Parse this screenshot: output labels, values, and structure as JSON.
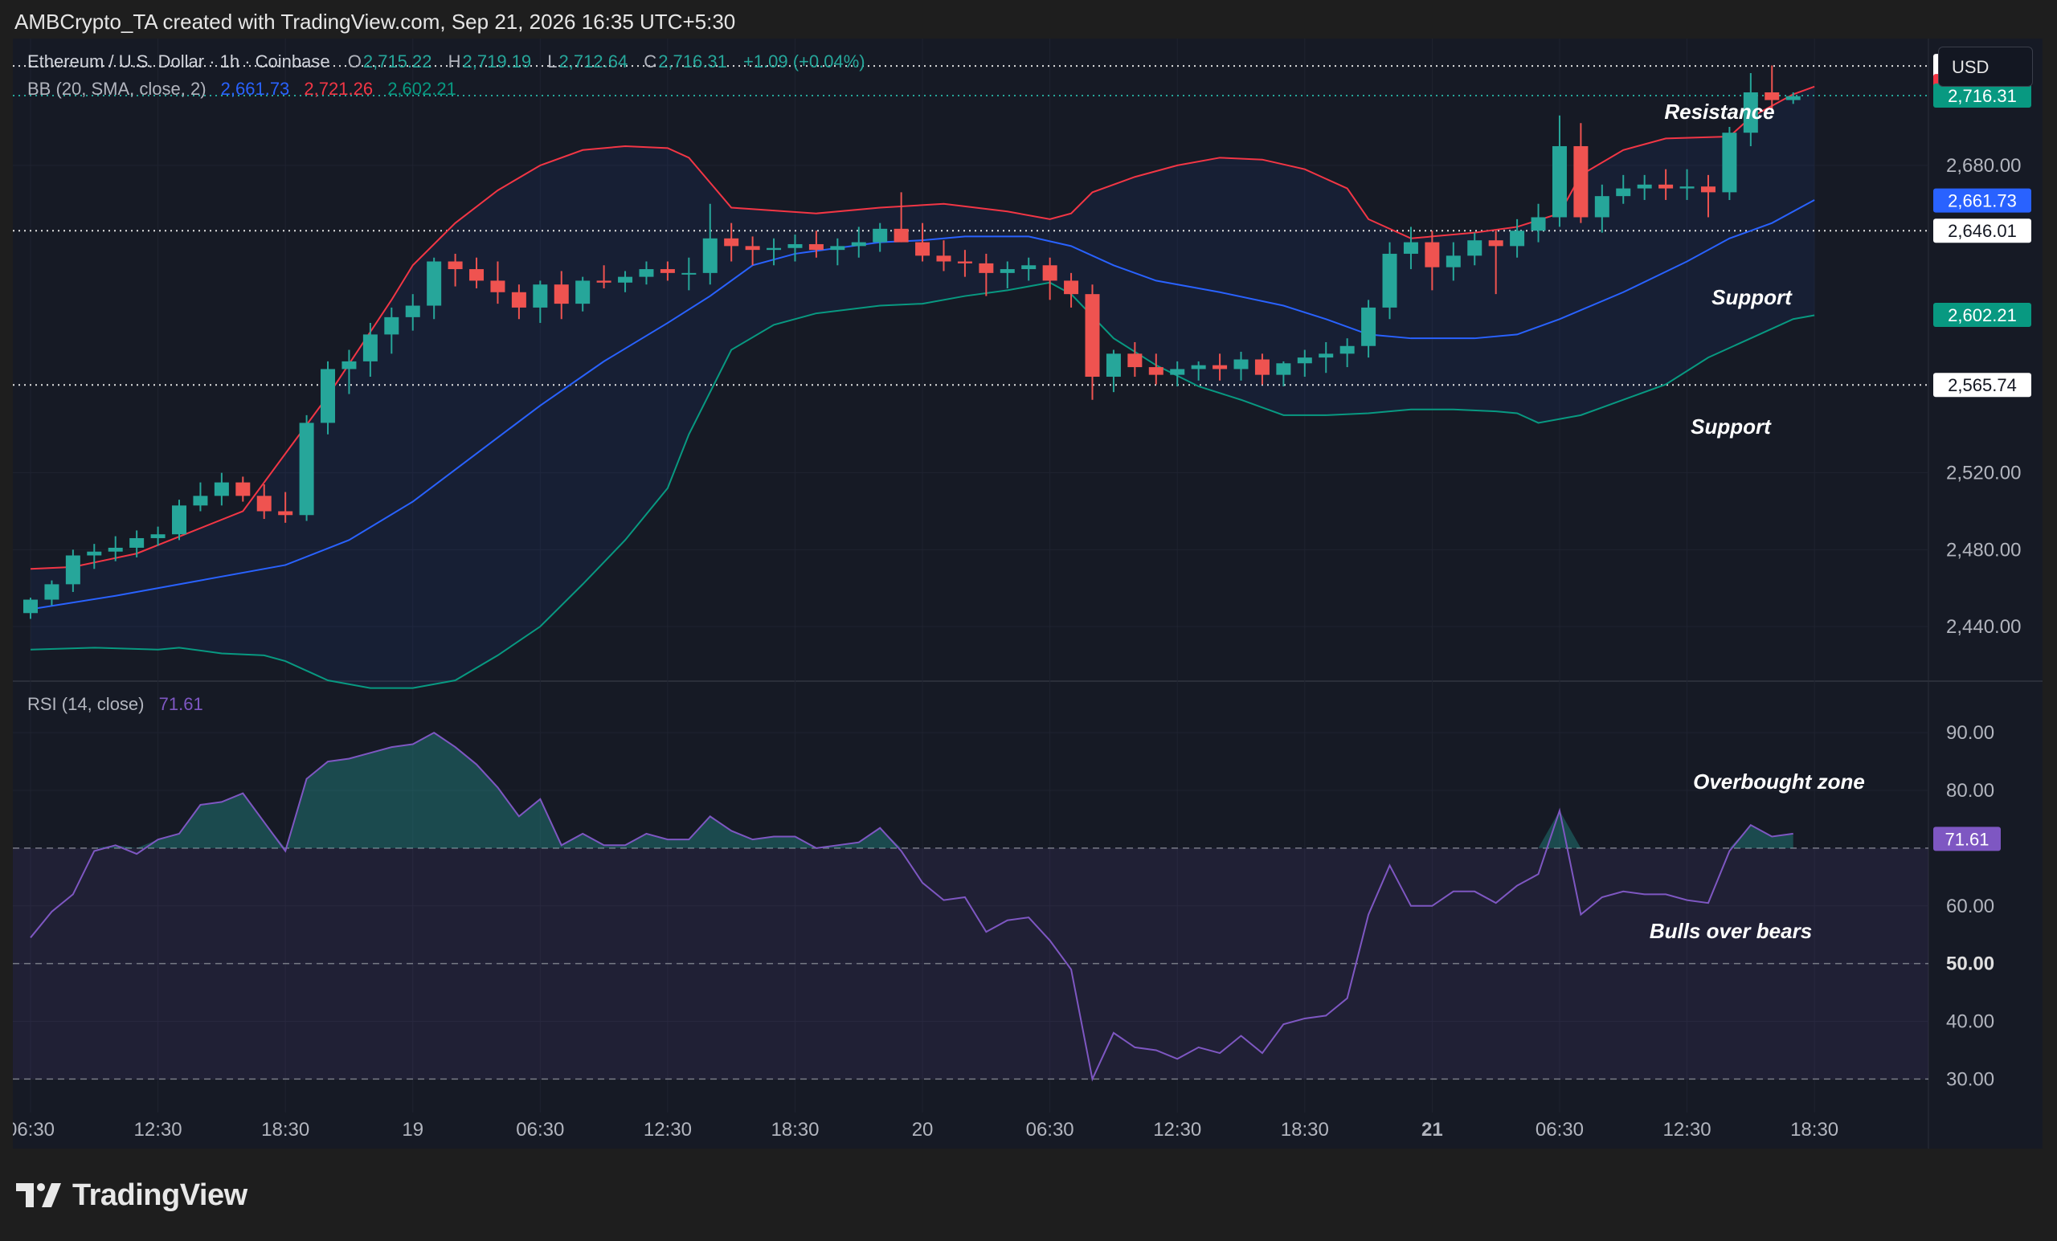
{
  "header": {
    "text": "AMBCrypto_TA created with TradingView.com, Sep 21, 2026 16:35 UTC+5:30"
  },
  "legend": {
    "symbol": "Ethereum / U.S. Dollar · 1h · Coinbase",
    "o_label": "O",
    "o_value": "2,715.22",
    "h_label": "H",
    "h_value": "2,719.19",
    "l_label": "L",
    "l_value": "2,712.64",
    "c_label": "C",
    "c_value": "2,716.31",
    "change": "+1.09 (+0.04%)",
    "bb_label": "BB (20, SMA, close, 2)",
    "bb_basis": "2,661.73",
    "bb_upper": "2,721.26",
    "bb_lower": "2,602.21",
    "rsi_label": "RSI (14, close)",
    "rsi_value": "71.61"
  },
  "currency_button": "USD",
  "brand": "TradingView",
  "colors": {
    "up": "#26a69a",
    "down": "#ef5350",
    "basis": "#2962ff",
    "upper": "#f23645",
    "lower": "#089981",
    "rsi": "#7e57c2",
    "background": "#161a25"
  },
  "annotations": {
    "resistance": "Resistance",
    "support_1": "Support",
    "support_2": "Support",
    "overbought": "Overbought zone",
    "bulls": "Bulls over bears"
  },
  "price_tags": [
    {
      "value": 2731.75,
      "label": "2,731.75",
      "style": "white"
    },
    {
      "value": 2721.26,
      "label": "2,721.26",
      "style": "red"
    },
    {
      "value": 2716.31,
      "label": "2,716.31",
      "style": "green"
    },
    {
      "value": 2661.73,
      "label": "2,661.73",
      "style": "blue"
    },
    {
      "value": 2646.01,
      "label": "2,646.01",
      "style": "white"
    },
    {
      "value": 2602.21,
      "label": "2,602.21",
      "style": "green"
    },
    {
      "value": 2565.74,
      "label": "2,565.74",
      "style": "white"
    }
  ],
  "rsi_tag": {
    "value": 71.61,
    "label": "71.61"
  },
  "chart_data": {
    "type": "candlestick",
    "price_axis": {
      "ylim": [
        2412,
        2746
      ],
      "ticks": [
        "2,440.00",
        "2,480.00",
        "2,520.00",
        "2,680.00"
      ],
      "tick_values": [
        2440,
        2480,
        2520,
        2680
      ]
    },
    "rsi_axis": {
      "ylim": [
        27,
        96
      ],
      "ticks": [
        "30.00",
        "40.00",
        "50.00",
        "60.00",
        "80.00",
        "90.00"
      ],
      "tick_values": [
        30,
        40,
        50,
        60,
        80,
        90
      ],
      "bold_tick": "50.00",
      "dashed_levels": [
        30,
        50,
        70
      ]
    },
    "x_axis": {
      "labels": [
        "06:30",
        "12:30",
        "18:30",
        "19",
        "06:30",
        "12:30",
        "18:30",
        "20",
        "06:30",
        "12:30",
        "18:30",
        "21",
        "06:30",
        "12:30",
        "18:30"
      ],
      "bold": [
        false,
        false,
        false,
        false,
        false,
        false,
        false,
        false,
        false,
        false,
        false,
        true,
        false,
        false,
        false
      ],
      "start_offset_hours": 0
    },
    "hlines": [
      2731.75,
      2646.01,
      2565.74,
      2716.31
    ],
    "candles": [
      [
        2447,
        2455,
        2444,
        2454
      ],
      [
        2454,
        2464,
        2451,
        2462
      ],
      [
        2462,
        2480,
        2458,
        2477
      ],
      [
        2477,
        2483,
        2470,
        2479
      ],
      [
        2479,
        2487,
        2474,
        2481
      ],
      [
        2481,
        2490,
        2476,
        2486
      ],
      [
        2486,
        2492,
        2482,
        2488
      ],
      [
        2488,
        2506,
        2485,
        2503
      ],
      [
        2503,
        2515,
        2500,
        2508
      ],
      [
        2508,
        2520,
        2503,
        2515
      ],
      [
        2515,
        2518,
        2505,
        2508
      ],
      [
        2508,
        2514,
        2496,
        2500
      ],
      [
        2500,
        2510,
        2494,
        2498
      ],
      [
        2498,
        2550,
        2495,
        2546
      ],
      [
        2546,
        2578,
        2540,
        2574
      ],
      [
        2574,
        2584,
        2561,
        2578
      ],
      [
        2578,
        2598,
        2570,
        2592
      ],
      [
        2592,
        2606,
        2582,
        2601
      ],
      [
        2601,
        2613,
        2594,
        2607
      ],
      [
        2607,
        2632,
        2600,
        2630
      ],
      [
        2630,
        2634,
        2617,
        2626
      ],
      [
        2626,
        2632,
        2616,
        2620
      ],
      [
        2620,
        2630,
        2608,
        2614
      ],
      [
        2614,
        2618,
        2600,
        2606
      ],
      [
        2606,
        2620,
        2598,
        2618
      ],
      [
        2618,
        2625,
        2600,
        2608
      ],
      [
        2608,
        2622,
        2604,
        2620
      ],
      [
        2620,
        2628,
        2616,
        2619
      ],
      [
        2619,
        2625,
        2614,
        2622
      ],
      [
        2622,
        2630,
        2618,
        2626
      ],
      [
        2626,
        2630,
        2620,
        2624
      ],
      [
        2624,
        2632,
        2615,
        2624
      ],
      [
        2624,
        2660,
        2618,
        2642
      ],
      [
        2642,
        2650,
        2630,
        2638
      ],
      [
        2638,
        2643,
        2628,
        2636
      ],
      [
        2636,
        2642,
        2628,
        2637
      ],
      [
        2637,
        2644,
        2630,
        2639
      ],
      [
        2639,
        2646,
        2632,
        2636
      ],
      [
        2636,
        2642,
        2628,
        2638
      ],
      [
        2638,
        2648,
        2632,
        2640
      ],
      [
        2640,
        2650,
        2635,
        2647
      ],
      [
        2647,
        2666,
        2640,
        2640
      ],
      [
        2640,
        2650,
        2630,
        2633
      ],
      [
        2633,
        2641,
        2625,
        2630
      ],
      [
        2630,
        2636,
        2622,
        2629
      ],
      [
        2629,
        2634,
        2612,
        2624
      ],
      [
        2624,
        2630,
        2616,
        2626
      ],
      [
        2626,
        2632,
        2620,
        2628
      ],
      [
        2628,
        2632,
        2610,
        2620
      ],
      [
        2620,
        2624,
        2606,
        2613
      ],
      [
        2613,
        2618,
        2558,
        2570
      ],
      [
        2570,
        2584,
        2562,
        2582
      ],
      [
        2582,
        2588,
        2570,
        2575
      ],
      [
        2575,
        2582,
        2566,
        2571
      ],
      [
        2571,
        2578,
        2565,
        2574
      ],
      [
        2574,
        2578,
        2568,
        2576
      ],
      [
        2576,
        2582,
        2568,
        2574
      ],
      [
        2574,
        2583,
        2568,
        2579
      ],
      [
        2579,
        2582,
        2566,
        2571
      ],
      [
        2571,
        2578,
        2565,
        2577
      ],
      [
        2577,
        2584,
        2570,
        2580
      ],
      [
        2580,
        2588,
        2572,
        2582
      ],
      [
        2582,
        2590,
        2575,
        2586
      ],
      [
        2586,
        2610,
        2580,
        2606
      ],
      [
        2606,
        2640,
        2600,
        2634
      ],
      [
        2634,
        2648,
        2626,
        2640
      ],
      [
        2640,
        2646,
        2615,
        2627
      ],
      [
        2627,
        2640,
        2620,
        2633
      ],
      [
        2633,
        2645,
        2628,
        2641
      ],
      [
        2641,
        2646,
        2613,
        2638
      ],
      [
        2638,
        2652,
        2632,
        2646
      ],
      [
        2646,
        2660,
        2640,
        2653
      ],
      [
        2653,
        2706,
        2648,
        2690
      ],
      [
        2690,
        2702,
        2650,
        2653
      ],
      [
        2653,
        2670,
        2645,
        2664
      ],
      [
        2664,
        2675,
        2660,
        2668
      ],
      [
        2668,
        2675,
        2662,
        2670
      ],
      [
        2670,
        2678,
        2662,
        2668
      ],
      [
        2668,
        2678,
        2662,
        2669
      ],
      [
        2669,
        2675,
        2653,
        2666
      ],
      [
        2666,
        2700,
        2662,
        2697
      ],
      [
        2697,
        2728,
        2690,
        2718
      ],
      [
        2718,
        2732,
        2709,
        2714
      ],
      [
        2714,
        2718,
        2712,
        2716
      ]
    ],
    "bb_upper": [
      [
        0,
        2470
      ],
      [
        2,
        2471
      ],
      [
        5,
        2478
      ],
      [
        10,
        2500
      ],
      [
        14,
        2560
      ],
      [
        17,
        2610
      ],
      [
        18,
        2628
      ],
      [
        20,
        2650
      ],
      [
        22,
        2667
      ],
      [
        24,
        2680
      ],
      [
        26,
        2688
      ],
      [
        28,
        2690
      ],
      [
        30,
        2689
      ],
      [
        31,
        2684
      ],
      [
        33,
        2658
      ],
      [
        37,
        2655
      ],
      [
        40,
        2658
      ],
      [
        43,
        2660
      ],
      [
        46,
        2656
      ],
      [
        48,
        2652
      ],
      [
        49,
        2655
      ],
      [
        50,
        2666
      ],
      [
        52,
        2674
      ],
      [
        54,
        2680
      ],
      [
        56,
        2684
      ],
      [
        58,
        2683
      ],
      [
        60,
        2678
      ],
      [
        62,
        2668
      ],
      [
        63,
        2652
      ],
      [
        65,
        2642
      ],
      [
        68,
        2645
      ],
      [
        70,
        2648
      ],
      [
        72,
        2655
      ],
      [
        73,
        2675
      ],
      [
        75,
        2688
      ],
      [
        77,
        2694
      ],
      [
        80,
        2695
      ],
      [
        81,
        2705
      ],
      [
        83,
        2717
      ],
      [
        84,
        2721
      ]
    ],
    "bb_basis": [
      [
        0,
        2449
      ],
      [
        4,
        2456
      ],
      [
        8,
        2464
      ],
      [
        12,
        2472
      ],
      [
        15,
        2485
      ],
      [
        18,
        2505
      ],
      [
        21,
        2530
      ],
      [
        24,
        2555
      ],
      [
        27,
        2578
      ],
      [
        30,
        2598
      ],
      [
        32,
        2612
      ],
      [
        34,
        2628
      ],
      [
        36,
        2634
      ],
      [
        38,
        2637
      ],
      [
        40,
        2640
      ],
      [
        42,
        2641
      ],
      [
        44,
        2643
      ],
      [
        47,
        2643
      ],
      [
        49,
        2638
      ],
      [
        51,
        2628
      ],
      [
        53,
        2620
      ],
      [
        56,
        2614
      ],
      [
        59,
        2607
      ],
      [
        61,
        2600
      ],
      [
        63,
        2592
      ],
      [
        65,
        2590
      ],
      [
        68,
        2590
      ],
      [
        70,
        2592
      ],
      [
        72,
        2600
      ],
      [
        75,
        2614
      ],
      [
        78,
        2630
      ],
      [
        80,
        2642
      ],
      [
        82,
        2650
      ],
      [
        84,
        2662
      ]
    ],
    "bb_lower": [
      [
        0,
        2428
      ],
      [
        3,
        2429
      ],
      [
        6,
        2428
      ],
      [
        7,
        2429
      ],
      [
        9,
        2426
      ],
      [
        11,
        2425
      ],
      [
        12,
        2422
      ],
      [
        14,
        2412
      ],
      [
        16,
        2408
      ],
      [
        18,
        2408
      ],
      [
        20,
        2412
      ],
      [
        22,
        2425
      ],
      [
        24,
        2440
      ],
      [
        26,
        2462
      ],
      [
        28,
        2485
      ],
      [
        30,
        2512
      ],
      [
        31,
        2540
      ],
      [
        33,
        2584
      ],
      [
        35,
        2597
      ],
      [
        37,
        2603
      ],
      [
        40,
        2607
      ],
      [
        42,
        2608
      ],
      [
        44,
        2612
      ],
      [
        46,
        2615
      ],
      [
        48,
        2619
      ],
      [
        49,
        2613
      ],
      [
        51,
        2590
      ],
      [
        53,
        2576
      ],
      [
        55,
        2565
      ],
      [
        57,
        2558
      ],
      [
        59,
        2550
      ],
      [
        61,
        2550
      ],
      [
        63,
        2551
      ],
      [
        65,
        2553
      ],
      [
        67,
        2553
      ],
      [
        69,
        2552
      ],
      [
        70,
        2551
      ],
      [
        71,
        2546
      ],
      [
        73,
        2550
      ],
      [
        75,
        2558
      ],
      [
        77,
        2566
      ],
      [
        79,
        2580
      ],
      [
        81,
        2590
      ],
      [
        83,
        2600
      ],
      [
        84,
        2602
      ]
    ],
    "rsi": [
      54.5,
      59,
      62,
      69.5,
      70.5,
      69,
      71.5,
      72.5,
      77.5,
      78,
      79.5,
      74.5,
      69.5,
      82,
      85,
      85.5,
      86.5,
      87.5,
      88,
      90,
      87.5,
      84.5,
      80.5,
      75.5,
      78.5,
      70.5,
      72.5,
      70.5,
      70.5,
      72.5,
      71.5,
      71.5,
      75.5,
      73,
      71.5,
      72,
      72,
      70,
      70.5,
      71,
      73.5,
      69.5,
      64,
      61,
      61.5,
      55.5,
      57.5,
      58,
      54,
      49,
      30,
      38,
      35.5,
      35,
      33.5,
      35.5,
      34.5,
      37.5,
      34.5,
      39.5,
      40.5,
      41,
      44,
      58.5,
      67,
      60,
      60,
      62.5,
      62.5,
      60.5,
      63.5,
      65.5,
      76.5,
      58.5,
      61.5,
      62.5,
      62,
      62,
      61,
      60.5,
      69.5,
      74,
      72,
      72.5
    ]
  }
}
